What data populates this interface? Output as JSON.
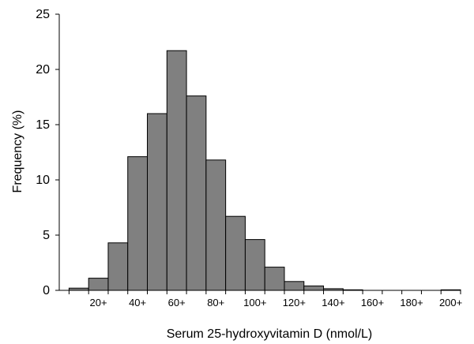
{
  "chart_data": {
    "type": "bar",
    "title": "",
    "xlabel": "Serum 25-hydroxyvitamin D (nmol/L)",
    "ylabel": "Frequency (%)",
    "bin_width": 10,
    "bin_starts": [
      10,
      20,
      30,
      40,
      50,
      60,
      70,
      80,
      90,
      100,
      110,
      120,
      130,
      140,
      150,
      160,
      170,
      180,
      190,
      200
    ],
    "values": [
      0.2,
      1.1,
      4.3,
      12.1,
      16.0,
      21.7,
      17.6,
      11.8,
      6.7,
      4.6,
      2.1,
      0.8,
      0.4,
      0.15,
      0.05,
      0.0,
      0.0,
      0.0,
      0.0,
      0.05
    ],
    "x_tick_labels": [
      "20+",
      "40+",
      "60+",
      "80+",
      "100+",
      "120+",
      "140+",
      "160+",
      "180+",
      "200+"
    ],
    "y_ticks": [
      0,
      5,
      10,
      15,
      20,
      25
    ],
    "ylim": [
      0,
      25
    ],
    "grid": false,
    "bar_color": "#808080",
    "bar_edge_color": "#000000"
  }
}
